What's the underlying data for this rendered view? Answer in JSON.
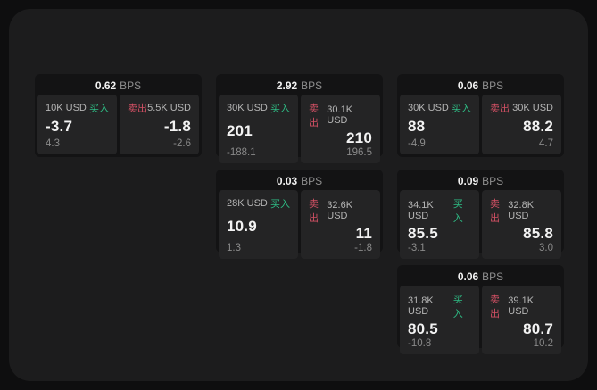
{
  "page": {
    "bps_unit_label": "BPS",
    "buy_label": "买入",
    "sell_label": "卖出"
  },
  "colors": {
    "outer_background": "#0e0e0f",
    "panel_background": "#1c1c1d",
    "card_background": "#131314",
    "tile_background": "#242425",
    "buy_green": "#2ebd85",
    "sell_red": "#d25064",
    "primary_text": "#f3f3f3",
    "muted_text": "#8a8a8a"
  },
  "cards": [
    {
      "bps_value": "0.62",
      "bps_unit": "BPS",
      "buy": {
        "notional": "10K USD",
        "side": "买入",
        "price": "-3.7",
        "delta": "4.3"
      },
      "sell": {
        "side": "卖出",
        "notional": "5.5K USD",
        "price": "-1.8",
        "delta": "-2.6"
      }
    },
    {
      "bps_value": "2.92",
      "bps_unit": "BPS",
      "buy": {
        "notional": "30K USD",
        "side": "买入",
        "price": "201",
        "delta": "-188.1"
      },
      "sell": {
        "side": "卖出",
        "notional": "30.1K USD",
        "price": "210",
        "delta": "196.5"
      }
    },
    {
      "bps_value": "0.06",
      "bps_unit": "BPS",
      "buy": {
        "notional": "30K USD",
        "side": "买入",
        "price": "88",
        "delta": "-4.9"
      },
      "sell": {
        "side": "卖出",
        "notional": "30K USD",
        "price": "88.2",
        "delta": "4.7"
      }
    },
    {
      "bps_value": "0.03",
      "bps_unit": "BPS",
      "buy": {
        "notional": "28K USD",
        "side": "买入",
        "price": "10.9",
        "delta": "1.3"
      },
      "sell": {
        "side": "卖出",
        "notional": "32.6K USD",
        "price": "11",
        "delta": "-1.8"
      }
    },
    {
      "bps_value": "0.09",
      "bps_unit": "BPS",
      "buy": {
        "notional": "34.1K USD",
        "side": "买入",
        "price": "85.5",
        "delta": "-3.1"
      },
      "sell": {
        "side": "卖出",
        "notional": "32.8K USD",
        "price": "85.8",
        "delta": "3.0"
      }
    },
    {
      "bps_value": "0.06",
      "bps_unit": "BPS",
      "buy": {
        "notional": "31.8K USD",
        "side": "买入",
        "price": "80.5",
        "delta": "-10.8"
      },
      "sell": {
        "side": "卖出",
        "notional": "39.1K USD",
        "price": "80.7",
        "delta": "10.2"
      }
    }
  ]
}
